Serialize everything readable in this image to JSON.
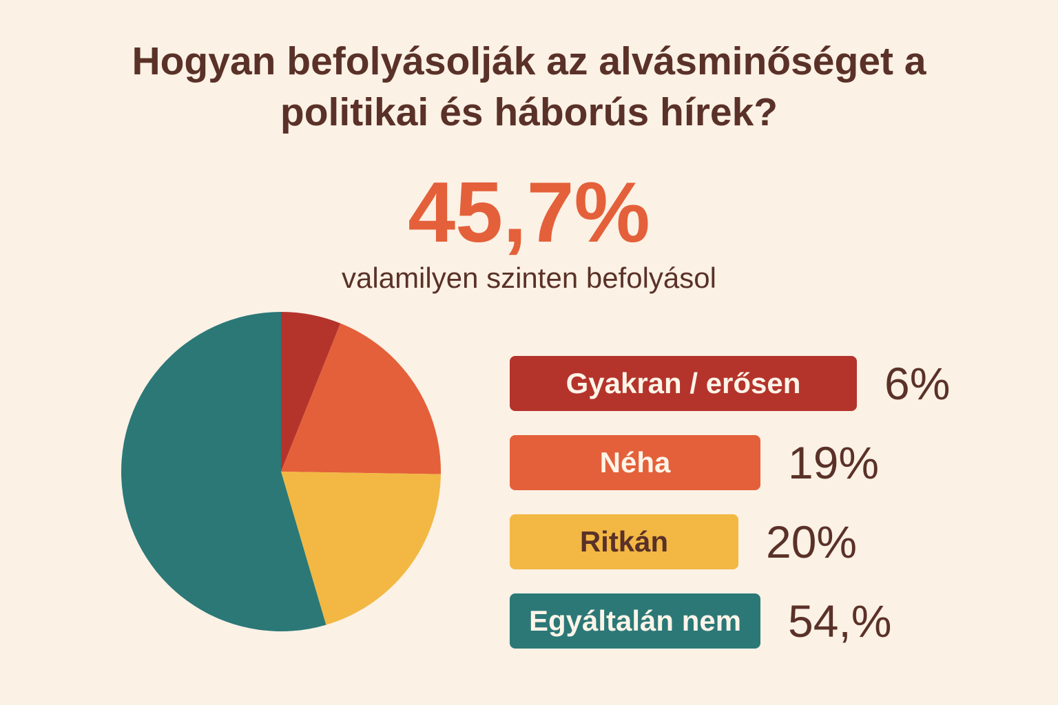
{
  "chart_data": {
    "type": "pie",
    "title": "Hogyan befolyásolják az alvásminőséget a politikai és háborús hírek?",
    "headline": "45,7%",
    "headline_caption": "valamilyen szinten befolyásol",
    "categories": [
      "Gyakran / erősen",
      "Néha",
      "Ritkán",
      "Egyáltalán nem"
    ],
    "values": [
      6,
      19,
      20,
      54
    ],
    "value_labels": [
      "6%",
      "19%",
      "20%",
      "54,%"
    ],
    "colors": [
      "#b4342c",
      "#e4603a",
      "#f2b843",
      "#2b7877"
    ]
  }
}
